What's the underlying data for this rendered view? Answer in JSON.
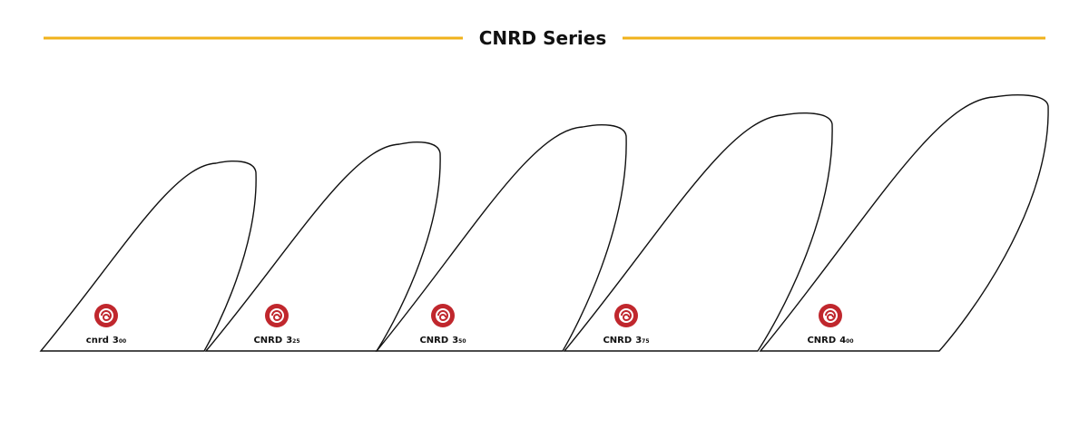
{
  "header": {
    "title": "CNRD Series"
  },
  "fins": [
    {
      "brand": "cnrd",
      "size": "3",
      "decimal": "00"
    },
    {
      "brand": "CNRD",
      "size": "3",
      "decimal": "25"
    },
    {
      "brand": "CNRD",
      "size": "3",
      "decimal": "50"
    },
    {
      "brand": "CNRD",
      "size": "3",
      "decimal": "75"
    },
    {
      "brand": "CNRD",
      "size": "4",
      "decimal": "00"
    }
  ]
}
